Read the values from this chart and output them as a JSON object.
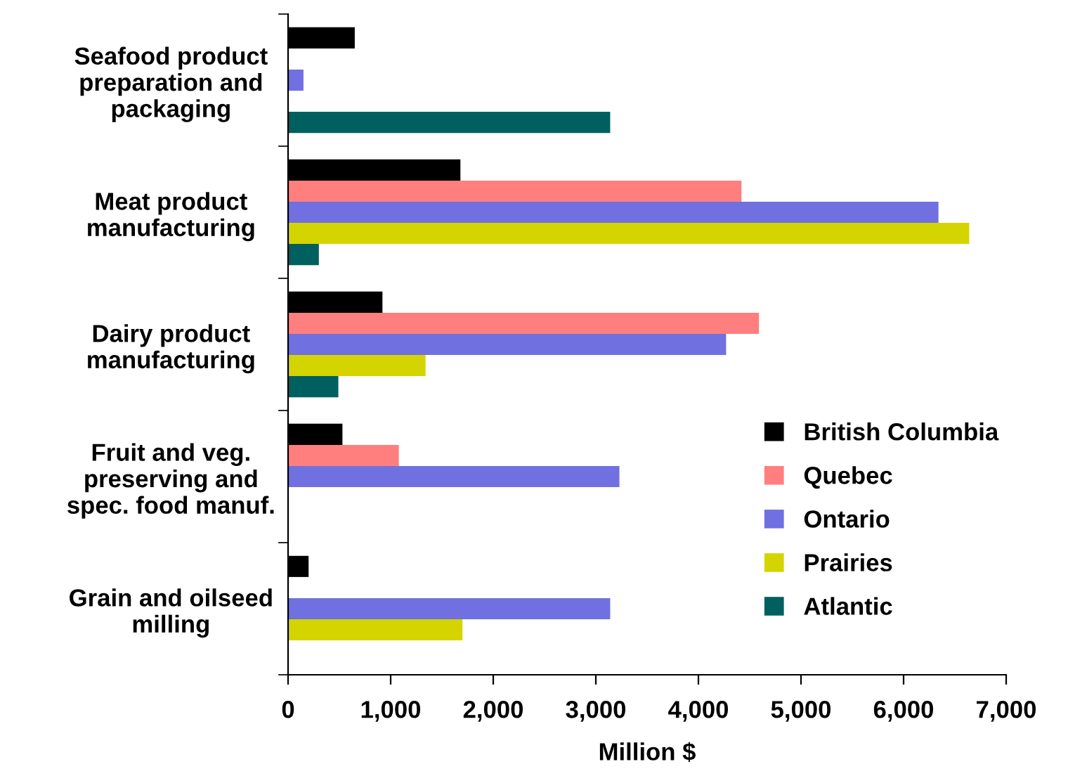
{
  "chart_data": {
    "type": "bar",
    "orientation": "horizontal",
    "xlabel": "Million $",
    "categories": [
      "Seafood product\npreparation and\npackaging",
      "Meat product\nmanufacturing",
      "Dairy product\nmanufacturing",
      "Fruit and veg.\npreserving and\nspec. food manuf.",
      "Grain and oilseed\nmilling"
    ],
    "series": [
      {
        "name": "British Columbia",
        "color": "#000000",
        "values": [
          650,
          1680,
          920,
          530,
          200
        ]
      },
      {
        "name": "Quebec",
        "color": "#ff7f7f",
        "values": [
          null,
          4420,
          4590,
          1080,
          null
        ]
      },
      {
        "name": "Ontario",
        "color": "#7070e0",
        "values": [
          150,
          6340,
          4270,
          3230,
          3140
        ]
      },
      {
        "name": "Prairies",
        "color": "#d4d400",
        "values": [
          null,
          6640,
          1340,
          null,
          1700
        ]
      },
      {
        "name": "Atlantic",
        "color": "#006060",
        "values": [
          3140,
          300,
          490,
          null,
          null
        ]
      }
    ],
    "xlim": [
      0,
      7000
    ],
    "xticks": [
      0,
      {
        "value": 1000,
        "label": "1,000"
      },
      {
        "value": 2000,
        "label": "2,000"
      },
      {
        "value": 3000,
        "label": "3,000"
      },
      {
        "value": 4000,
        "label": "4,000"
      },
      {
        "value": 5000,
        "label": "5,000"
      },
      {
        "value": 6000,
        "label": "6,000"
      },
      {
        "value": 7000,
        "label": "7,000"
      }
    ],
    "legend": "bottom right",
    "grid": false
  }
}
